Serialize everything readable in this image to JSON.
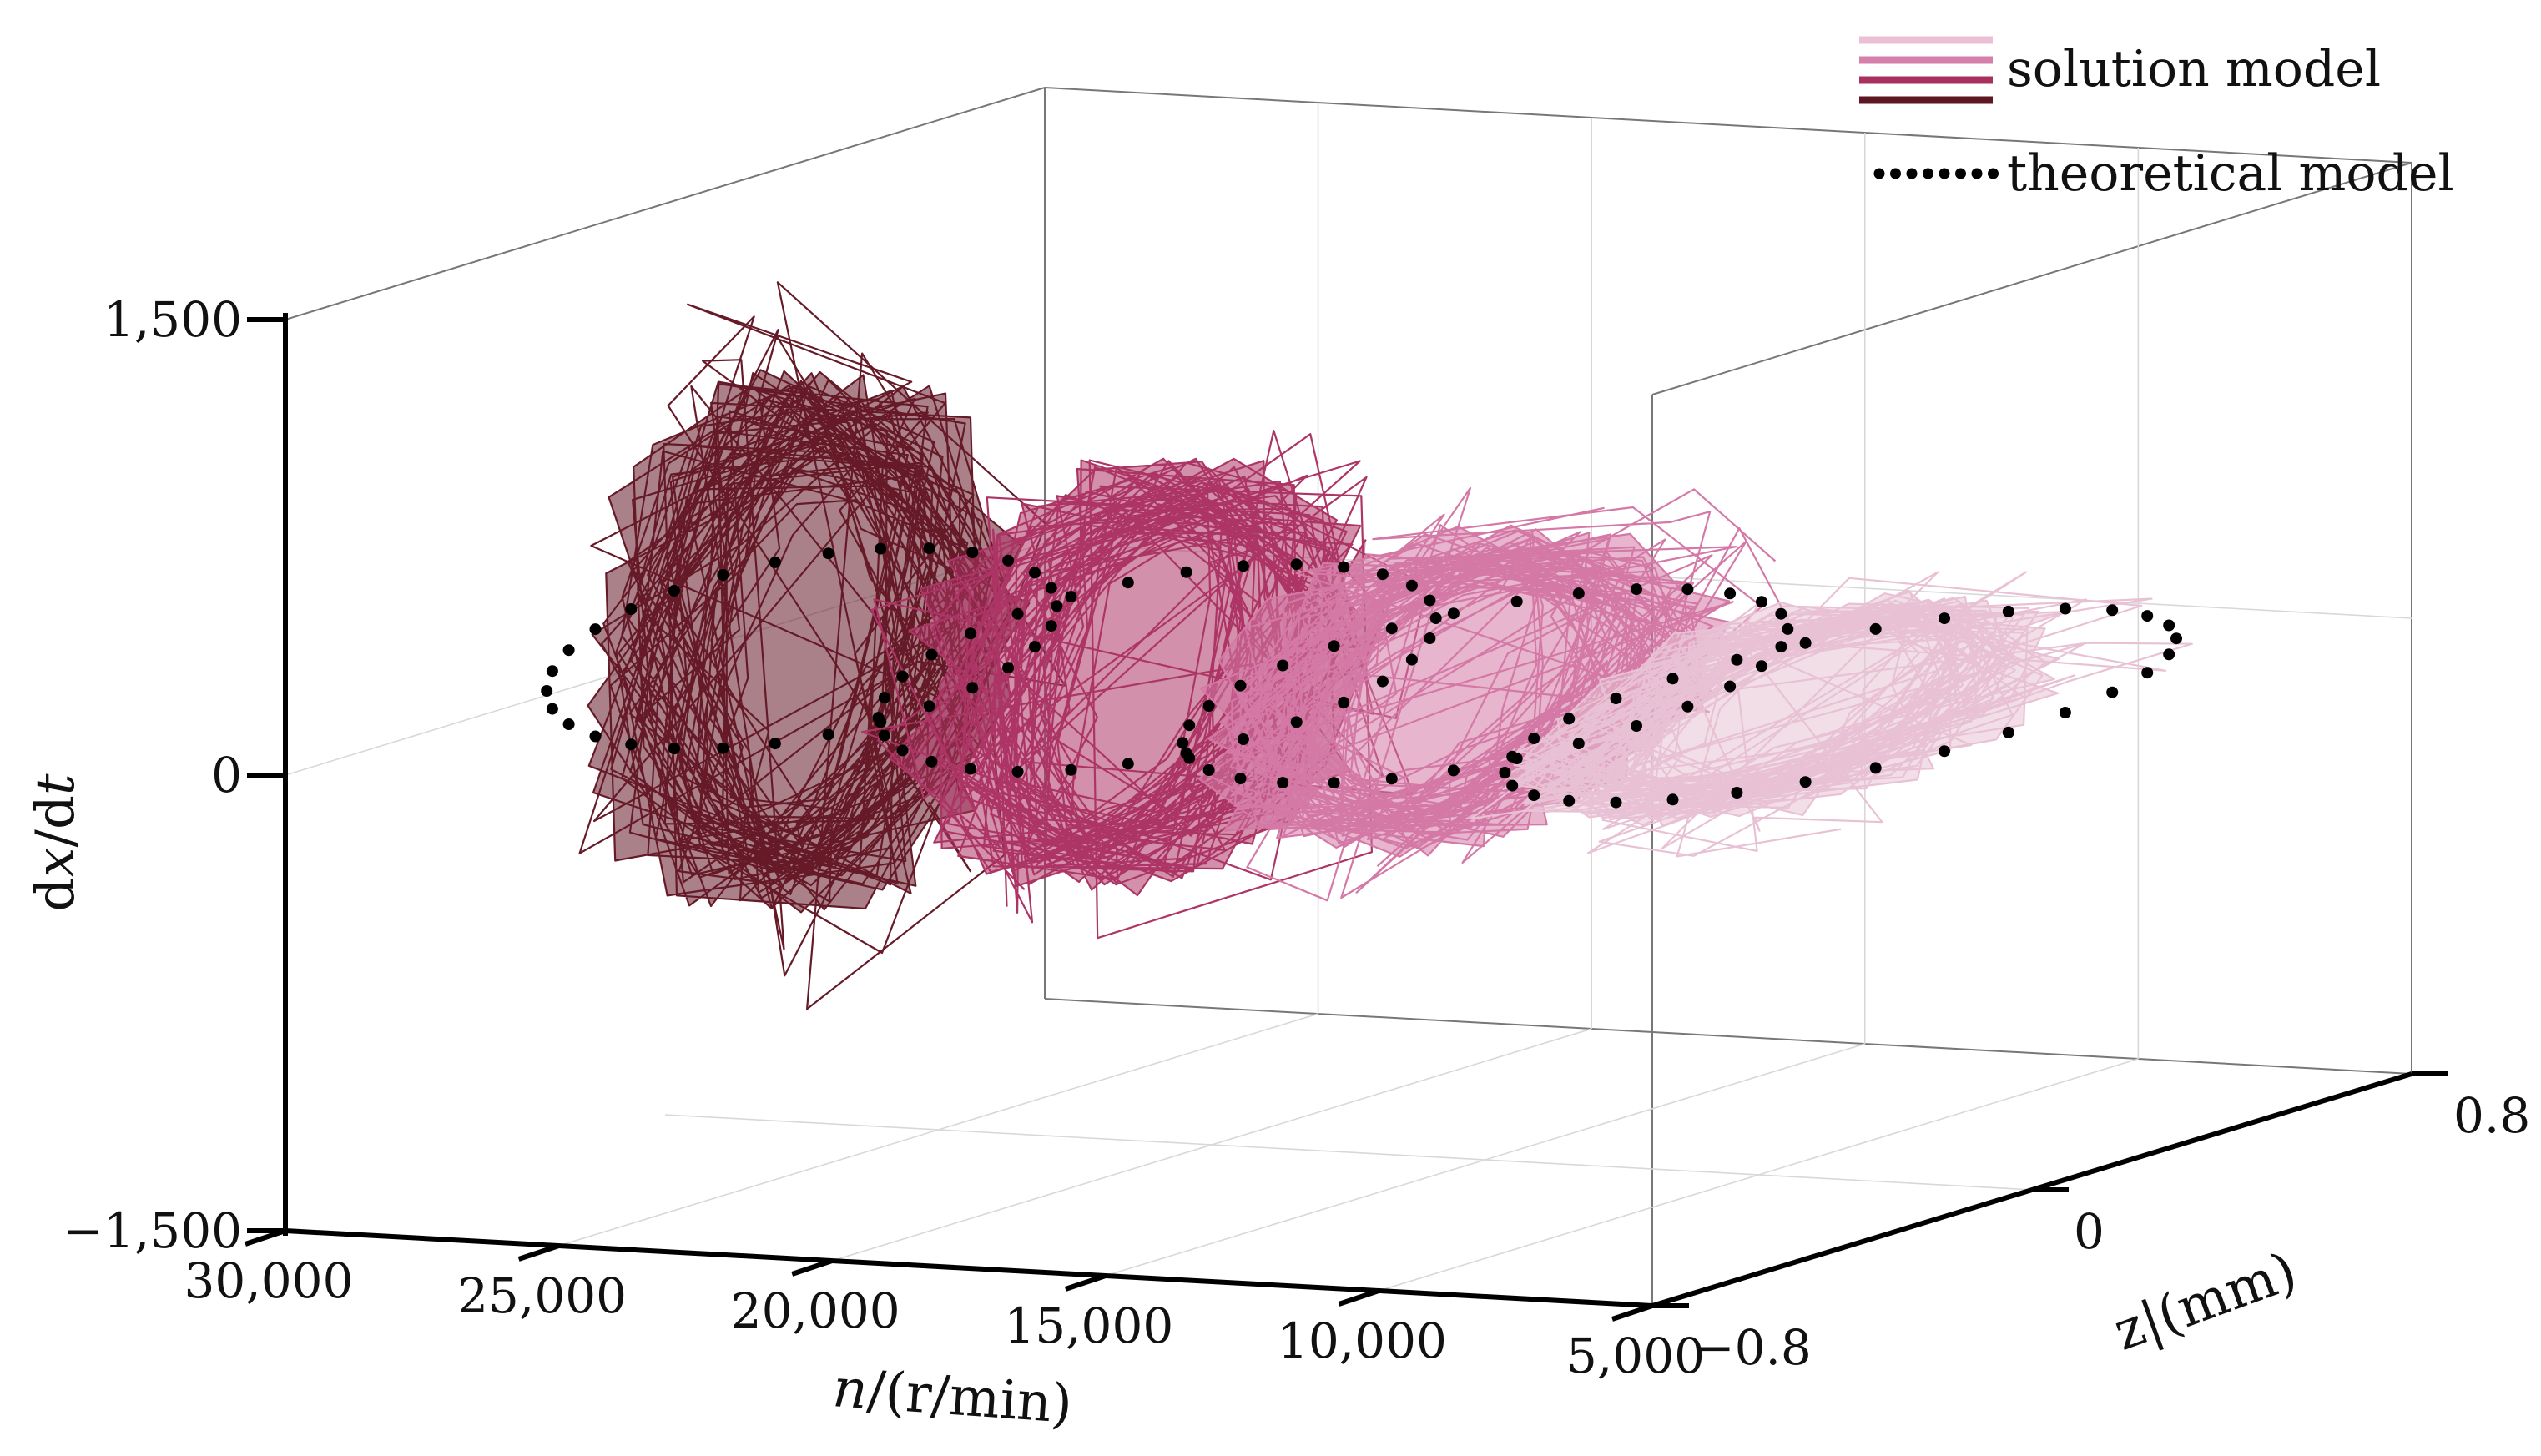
{
  "chart_data": {
    "type": "line",
    "subtype": "3d-trajectory",
    "title": "",
    "x_axis": {
      "label_italic": "n",
      "label_rest": "/(r/min)",
      "ticks": [
        "30,000",
        "25,000",
        "20,000",
        "15,000",
        "10,000",
        "5,000"
      ],
      "range": [
        30000,
        5000
      ]
    },
    "y_axis": {
      "label": "z|(mm)",
      "ticks": [
        "−0.8",
        "0",
        "0.8"
      ],
      "range": [
        -0.8,
        0.8
      ]
    },
    "z_axis": {
      "label": "dx/dt",
      "label_parts": [
        "d",
        "x",
        "/d",
        "t"
      ],
      "ticks": [
        "−1,500",
        "0",
        "1,500"
      ],
      "range": [
        -1500,
        1500
      ]
    },
    "grid": true,
    "legend": {
      "position": "top-right",
      "entries": [
        {
          "name": "solution model",
          "style": "solid-stack"
        },
        {
          "name": "theoretical model",
          "style": "dotted"
        }
      ]
    },
    "series": [
      {
        "name": "solution model",
        "speed": 27500,
        "color": "#661a28",
        "amplitude_z": 0.35,
        "amplitude_v": 900,
        "center_v": 80
      },
      {
        "name": "solution model",
        "speed": 21000,
        "color": "#ad3565",
        "amplitude_z": 0.4,
        "amplitude_v": 700,
        "center_v": 40
      },
      {
        "name": "solution model",
        "speed": 15000,
        "color": "#d478a6",
        "amplitude_z": 0.45,
        "amplitude_v": 500,
        "center_v": 40
      },
      {
        "name": "solution model",
        "speed": 8500,
        "color": "#e8c2d4",
        "amplitude_z": 0.5,
        "amplitude_v": 300,
        "center_v": 40
      }
    ],
    "theoretical": [
      {
        "speed": 27500,
        "amplitude_z": 0.33,
        "amplitude_v": 300
      },
      {
        "speed": 21000,
        "amplitude_z": 0.38,
        "amplitude_v": 300
      },
      {
        "speed": 15000,
        "amplitude_z": 0.43,
        "amplitude_v": 260
      },
      {
        "speed": 8500,
        "amplitude_z": 0.5,
        "amplitude_v": 230
      }
    ],
    "legend_colors": [
      "#ebbfd3",
      "#d67fab",
      "#a8305e",
      "#5e1623"
    ]
  }
}
